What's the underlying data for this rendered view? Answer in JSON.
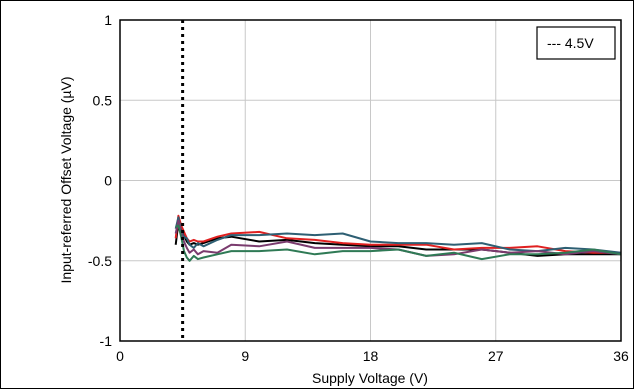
{
  "chart_data": {
    "type": "line",
    "title": "",
    "xlabel": "Supply Voltage (V)",
    "ylabel": "Input-referred Offset Voltage (µV)",
    "xlim": [
      0,
      36
    ],
    "ylim": [
      -1,
      1
    ],
    "x_ticks": [
      "0",
      "9",
      "18",
      "27",
      "36"
    ],
    "x_tick_values": [
      0,
      9,
      18,
      27,
      36
    ],
    "y_ticks": [
      "1",
      "0.5",
      "0",
      "-0.5",
      "-1"
    ],
    "y_tick_values": [
      1,
      0.5,
      0,
      -0.5,
      -1
    ],
    "grid": true,
    "legend_position": "top-right",
    "legend": [
      {
        "label": "--- 4.5V"
      }
    ],
    "reference_line": {
      "x": 4.5,
      "style": "dotted",
      "color": "#000000"
    },
    "series": [
      {
        "color": "#000000",
        "x": [
          4.0,
          4.2,
          4.4,
          4.6,
          4.8,
          5.0,
          5.3,
          5.6,
          6.0,
          7,
          8,
          10,
          12,
          14,
          16,
          18,
          20,
          22,
          24,
          26,
          28,
          30,
          32,
          34,
          36
        ],
        "y": [
          -0.4,
          -0.26,
          -0.3,
          -0.34,
          -0.38,
          -0.4,
          -0.39,
          -0.4,
          -0.39,
          -0.36,
          -0.35,
          -0.38,
          -0.37,
          -0.39,
          -0.4,
          -0.41,
          -0.41,
          -0.43,
          -0.43,
          -0.43,
          -0.45,
          -0.47,
          -0.46,
          -0.46,
          -0.46
        ]
      },
      {
        "color": "#e02020",
        "x": [
          4.0,
          4.2,
          4.4,
          4.6,
          4.8,
          5.0,
          5.3,
          5.6,
          6.0,
          7,
          8,
          10,
          12,
          14,
          16,
          18,
          20,
          22,
          24,
          26,
          28,
          30,
          32,
          34,
          36
        ],
        "y": [
          -0.36,
          -0.22,
          -0.28,
          -0.32,
          -0.36,
          -0.38,
          -0.37,
          -0.38,
          -0.38,
          -0.35,
          -0.33,
          -0.32,
          -0.36,
          -0.37,
          -0.39,
          -0.4,
          -0.4,
          -0.4,
          -0.43,
          -0.42,
          -0.42,
          -0.41,
          -0.44,
          -0.45,
          -0.45
        ]
      },
      {
        "color": "#2e5f73",
        "x": [
          4.0,
          4.2,
          4.4,
          4.6,
          4.8,
          5.0,
          5.3,
          5.6,
          6.0,
          7,
          8,
          10,
          12,
          14,
          16,
          18,
          20,
          22,
          24,
          26,
          28,
          30,
          32,
          34,
          36
        ],
        "y": [
          -0.3,
          -0.23,
          -0.32,
          -0.35,
          -0.36,
          -0.4,
          -0.42,
          -0.39,
          -0.41,
          -0.37,
          -0.34,
          -0.34,
          -0.33,
          -0.34,
          -0.33,
          -0.38,
          -0.39,
          -0.39,
          -0.4,
          -0.39,
          -0.43,
          -0.44,
          -0.42,
          -0.43,
          -0.45
        ]
      },
      {
        "color": "#7a3b6e",
        "x": [
          4.0,
          4.2,
          4.4,
          4.6,
          4.8,
          5.0,
          5.3,
          5.6,
          6.0,
          7,
          8,
          10,
          12,
          14,
          16,
          18,
          20,
          22,
          24,
          26,
          28,
          30,
          32,
          34,
          36
        ],
        "y": [
          -0.33,
          -0.25,
          -0.33,
          -0.38,
          -0.42,
          -0.45,
          -0.43,
          -0.46,
          -0.44,
          -0.45,
          -0.4,
          -0.41,
          -0.38,
          -0.42,
          -0.42,
          -0.42,
          -0.43,
          -0.47,
          -0.46,
          -0.43,
          -0.45,
          -0.44,
          -0.46,
          -0.44,
          -0.46
        ]
      },
      {
        "color": "#2f7a55",
        "x": [
          4.0,
          4.2,
          4.4,
          4.6,
          4.8,
          5.0,
          5.3,
          5.6,
          6.0,
          7,
          8,
          10,
          12,
          14,
          16,
          18,
          20,
          22,
          24,
          26,
          28,
          30,
          32,
          34,
          36
        ],
        "y": [
          -0.29,
          -0.28,
          -0.35,
          -0.44,
          -0.48,
          -0.5,
          -0.47,
          -0.49,
          -0.48,
          -0.46,
          -0.44,
          -0.44,
          -0.43,
          -0.46,
          -0.44,
          -0.44,
          -0.43,
          -0.47,
          -0.45,
          -0.49,
          -0.46,
          -0.46,
          -0.45,
          -0.43,
          -0.46
        ]
      }
    ]
  }
}
